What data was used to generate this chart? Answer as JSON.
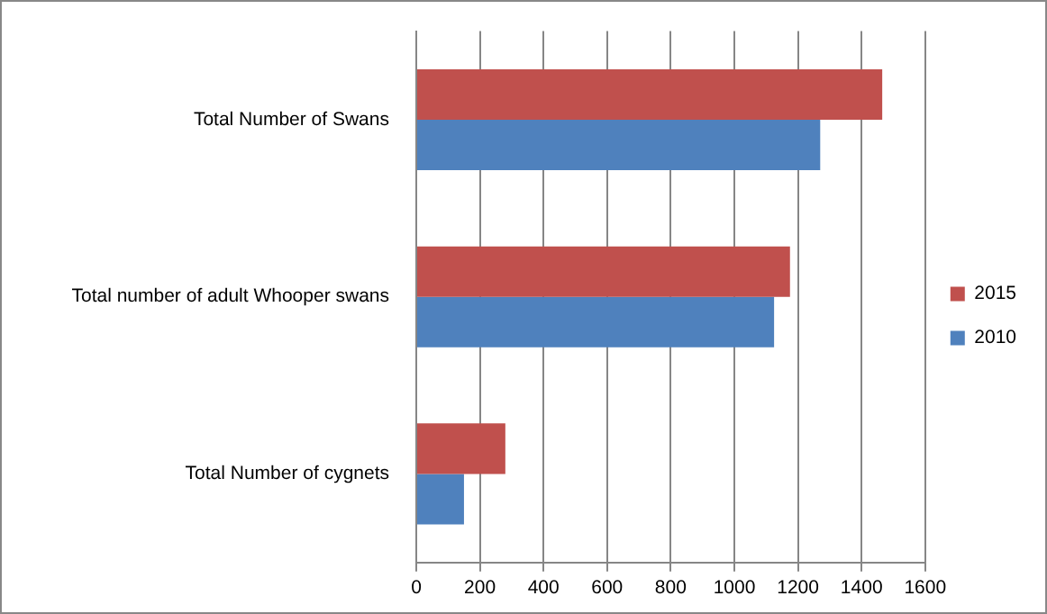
{
  "chart_data": {
    "type": "bar",
    "orientation": "horizontal",
    "categories": [
      "Total Number of Swans",
      "Total number of adult Whooper swans",
      "Total Number of cygnets"
    ],
    "series": [
      {
        "name": "2015",
        "color": "#c0504d",
        "values": [
          1465,
          1175,
          280
        ]
      },
      {
        "name": "2010",
        "color": "#4f81bd",
        "values": [
          1270,
          1125,
          150
        ]
      }
    ],
    "xlim": [
      0,
      1600
    ],
    "xticks": [
      0,
      200,
      400,
      600,
      800,
      1000,
      1200,
      1400,
      1600
    ],
    "grid": "x",
    "legend": "right"
  }
}
